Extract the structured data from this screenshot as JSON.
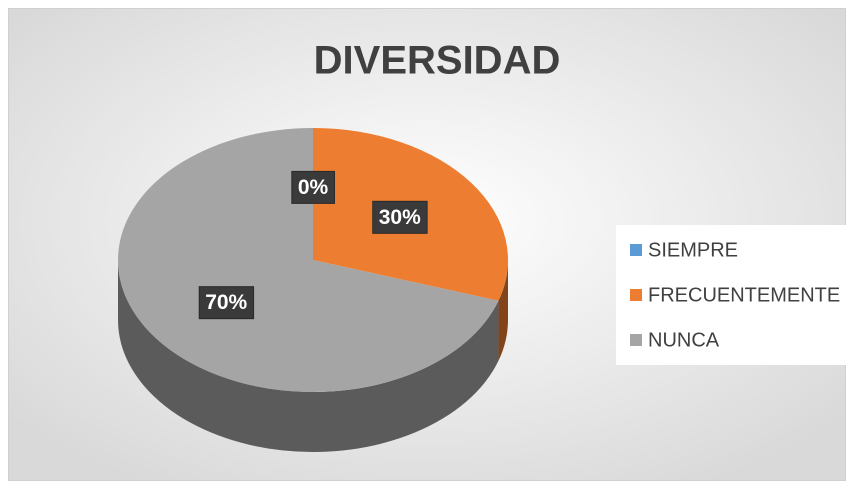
{
  "chart_data": {
    "type": "pie",
    "title": "DIVERSIDAD",
    "categories": [
      "SIEMPRE",
      "FRECUENTEMENTE",
      "NUNCA"
    ],
    "values": [
      0,
      30,
      70
    ],
    "value_labels": [
      "0%",
      "30%",
      "70%"
    ],
    "colors": [
      "#5b9bd5",
      "#ed7d31",
      "#a5a5a5"
    ],
    "legend": "right"
  }
}
